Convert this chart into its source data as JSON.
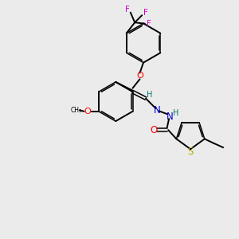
{
  "bg_color": "#ebebeb",
  "bond_color": "#000000",
  "oxygen_color": "#ff0000",
  "nitrogen_color": "#0000cc",
  "sulfur_color": "#bbaa00",
  "fluorine_color": "#cc00cc",
  "hydrogen_color": "#007777",
  "figsize": [
    3.0,
    3.0
  ],
  "dpi": 100,
  "xlim": [
    0,
    10
  ],
  "ylim": [
    0,
    10
  ]
}
